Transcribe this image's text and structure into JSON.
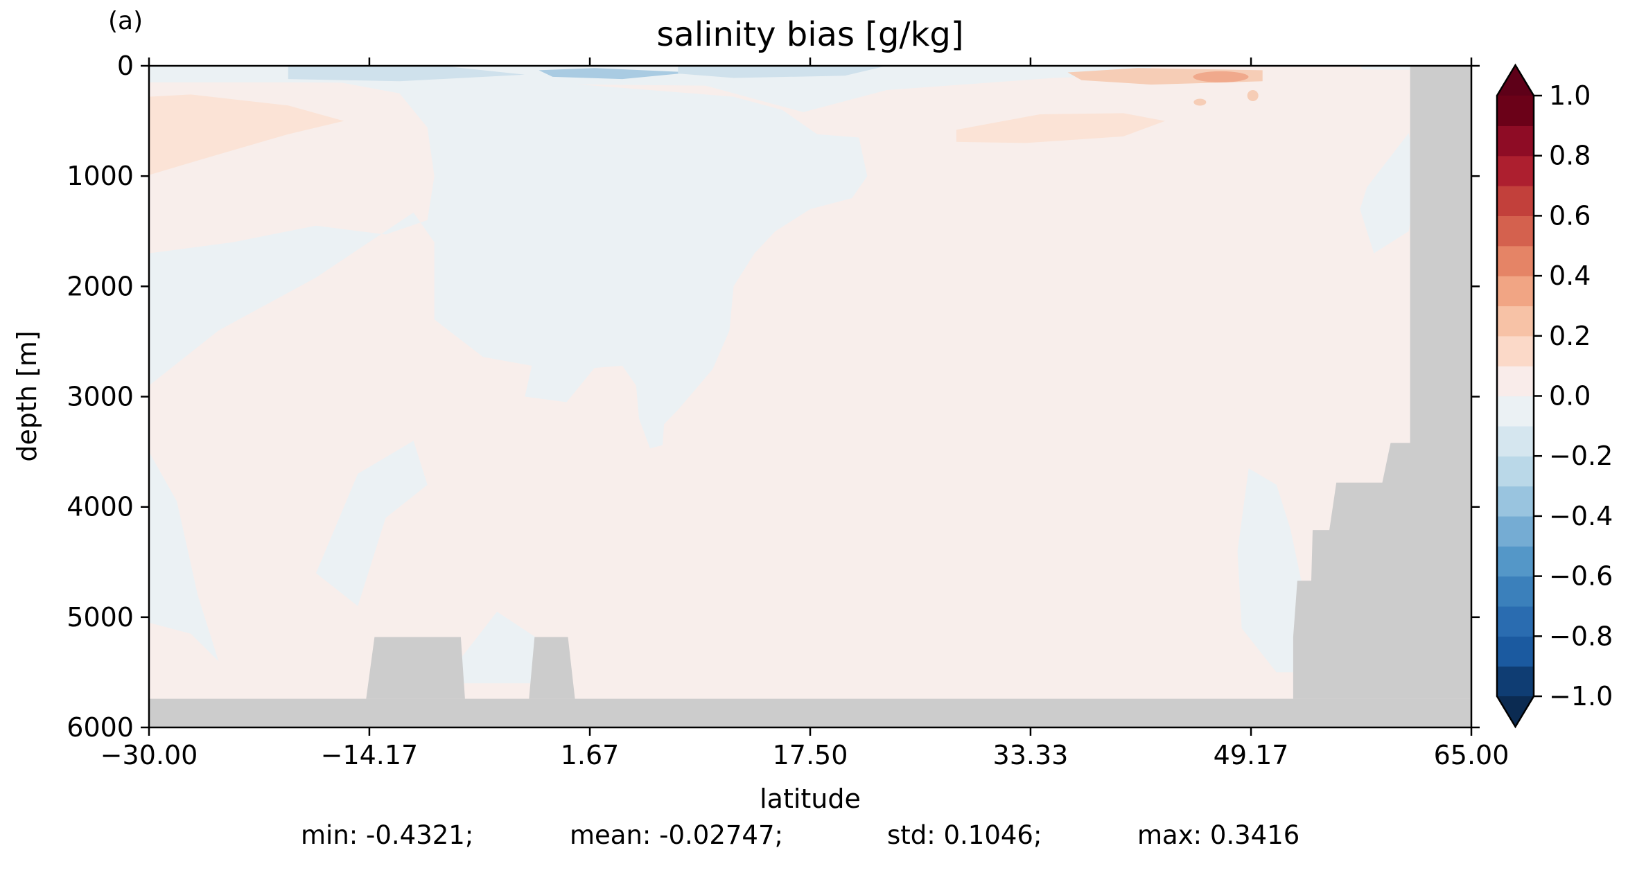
{
  "panel_label": "(a)",
  "chart_data": {
    "type": "heatmap",
    "title": "salinity bias [g/kg]",
    "xlabel": "latitude",
    "ylabel": "depth [m]",
    "xlim": [
      -30.0,
      65.0
    ],
    "ylim": [
      6000,
      0
    ],
    "x_ticks": [
      -30.0,
      -14.17,
      1.67,
      17.5,
      33.33,
      49.17,
      65.0
    ],
    "x_tick_labels": [
      "−30.00",
      "−14.17",
      "1.67",
      "17.50",
      "33.33",
      "49.17",
      "65.00"
    ],
    "y_ticks": [
      0,
      1000,
      2000,
      3000,
      4000,
      5000,
      6000
    ],
    "y_tick_labels": [
      "0",
      "1000",
      "2000",
      "3000",
      "4000",
      "5000",
      "6000"
    ],
    "colorbar": {
      "levels": [
        -1.0,
        -0.9,
        -0.8,
        -0.7,
        -0.6,
        -0.5,
        -0.4,
        -0.3,
        -0.2,
        -0.1,
        0.0,
        0.1,
        0.2,
        0.3,
        0.4,
        0.5,
        0.6,
        0.7,
        0.8,
        0.9,
        1.0
      ],
      "colors": [
        "#0f3d73",
        "#1b5aa0",
        "#2a6cb0",
        "#3b80bb",
        "#5497c8",
        "#75acd3",
        "#99c4df",
        "#bad8e8",
        "#d5e6ef",
        "#ebf1f4",
        "#f9ecea",
        "#fbd9c8",
        "#f7c2a6",
        "#f1a584",
        "#e58466",
        "#d4614e",
        "#c2403b",
        "#ad1f2f",
        "#8e0c25",
        "#6b0118"
      ],
      "extend_low_color": "#0b2b52",
      "extend_high_color": "#5e0018",
      "tick_values": [
        1.0,
        0.8,
        0.6,
        0.4,
        0.2,
        0.0,
        -0.2,
        -0.4,
        -0.6,
        -0.8,
        -1.0
      ],
      "tick_labels": [
        "1.0",
        "0.8",
        "0.6",
        "0.4",
        "0.2",
        "0.0",
        "−0.2",
        "−0.4",
        "−0.6",
        "−0.8",
        "−1.0"
      ]
    },
    "field_colors": {
      "background_positive": "#f8eeeb",
      "weak_negative": "#ebf1f4",
      "weak_positive": "#fbe3d6",
      "moderate_negative": "#cfe1ec",
      "strong_negative": "#a9cbe2",
      "moderate_positive": "#f6cdb6",
      "strong_positive": "#f0a98c",
      "land": "#cccccc"
    },
    "stats": {
      "min": "min: -0.4321;",
      "mean": "mean: -0.02747;",
      "std": "std: 0.1046;",
      "max": "max: 0.3416"
    }
  }
}
